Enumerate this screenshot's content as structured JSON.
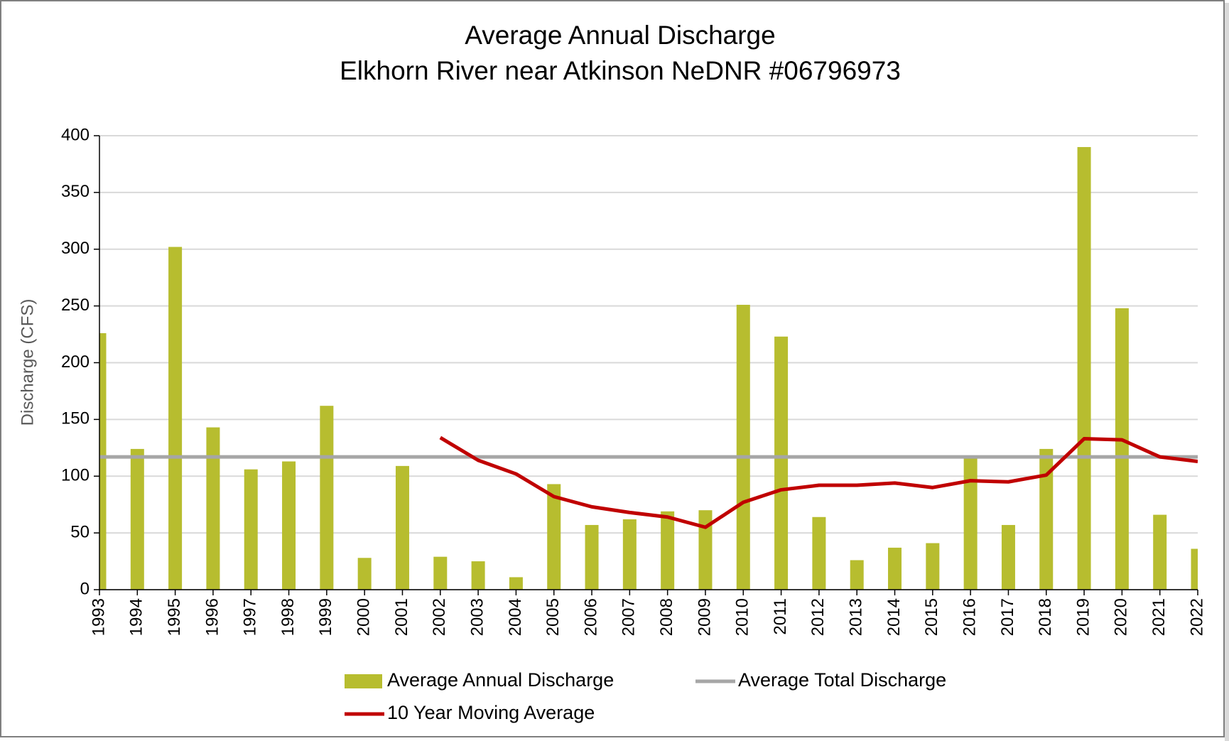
{
  "chart_data": {
    "type": "bar",
    "title": "Average Annual Discharge",
    "subtitle": "Elkhorn River near Atkinson NeDNR #06796973",
    "y_label": "Discharge (CFS)",
    "categories": [
      "1993",
      "1994",
      "1995",
      "1996",
      "1997",
      "1998",
      "1999",
      "2000",
      "2001",
      "2002",
      "2003",
      "2004",
      "2005",
      "2006",
      "2007",
      "2008",
      "2009",
      "2010",
      "2011",
      "2012",
      "2013",
      "2014",
      "2015",
      "2016",
      "2017",
      "2018",
      "2019",
      "2020",
      "2021",
      "2022"
    ],
    "series": [
      {
        "name": "Average Annual Discharge",
        "type": "bar",
        "color": "#b7bd2f",
        "values": [
          226,
          124,
          302,
          143,
          106,
          113,
          162,
          28,
          109,
          29,
          25,
          11,
          93,
          57,
          62,
          69,
          70,
          251,
          223,
          64,
          26,
          37,
          41,
          117,
          57,
          124,
          390,
          248,
          66,
          36
        ]
      },
      {
        "name": "Average Total Discharge",
        "type": "line",
        "color": "#a6a6a6",
        "values": [
          117,
          117,
          117,
          117,
          117,
          117,
          117,
          117,
          117,
          117,
          117,
          117,
          117,
          117,
          117,
          117,
          117,
          117,
          117,
          117,
          117,
          117,
          117,
          117,
          117,
          117,
          117,
          117,
          117,
          117
        ]
      },
      {
        "name": "10 Year Moving Average",
        "type": "line",
        "color": "#c00000",
        "values": [
          null,
          null,
          null,
          null,
          null,
          null,
          null,
          null,
          null,
          134,
          114,
          102,
          82,
          73,
          68,
          64,
          55,
          77,
          88,
          92,
          92,
          94,
          90,
          96,
          95,
          101,
          133,
          132,
          117,
          113
        ]
      }
    ],
    "ylim": [
      0,
      400
    ],
    "yticks": [
      0,
      50,
      100,
      150,
      200,
      250,
      300,
      350,
      400
    ],
    "grid": true
  }
}
